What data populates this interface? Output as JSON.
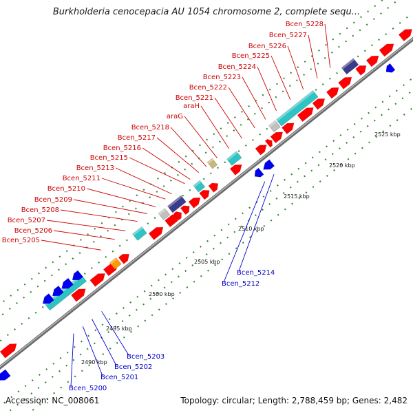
{
  "title": "Burkholderia cenocepacia AU 1054 chromosome 2, complete sequ...",
  "footer": {
    "accession": "Accession: NC_008061",
    "topology": "Topology: circular; Length: 2,788,459 bp; Genes: 2,482"
  },
  "colors": {
    "backbone": "#8c8c8c",
    "forward_gene": "#ff0000",
    "reverse_gene": "#0000ee",
    "rna_feature": "#2ec4c4",
    "dark_feature": "#3b3b8c",
    "grey_feature": "#c0c0c0",
    "olive_feature": "#c8b87a",
    "orange_feature": "#ff9900",
    "steelblue_feature": "#4a7ab5",
    "forward_label": "#cc0000",
    "reverse_label": "#0000cc",
    "tick": "#2e8b2e"
  },
  "scale_ticks": [
    "2490 kbp",
    "2495 kbp",
    "2500 kbp",
    "2505 kbp",
    "2510 kbp",
    "2515 kbp",
    "2520 kbp",
    "2525 kbp"
  ],
  "forward_labels": [
    "Bcen_5205",
    "Bcen_5206",
    "Bcen_5207",
    "Bcen_5208",
    "Bcen_5209",
    "Bcen_5210",
    "Bcen_5211",
    "Bcen_5213",
    "Bcen_5215",
    "Bcen_5216",
    "Bcen_5217",
    "Bcen_5218",
    "araG",
    "araH",
    "Bcen_5221",
    "Bcen_5222",
    "Bcen_5223",
    "Bcen_5224",
    "Bcen_5225",
    "Bcen_5226",
    "Bcen_5227",
    "Bcen_5228"
  ],
  "reverse_labels": [
    "Bcen_5200",
    "Bcen_5201",
    "Bcen_5202",
    "Bcen_5203",
    "Bcen_5212",
    "Bcen_5214"
  ]
}
